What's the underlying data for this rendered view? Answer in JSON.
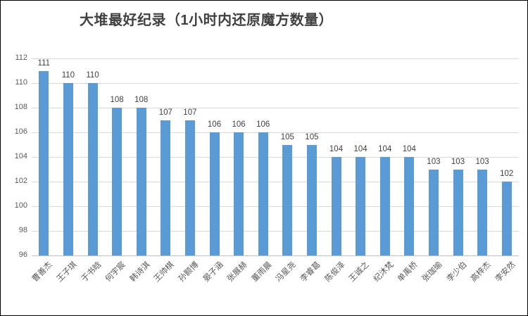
{
  "title": "大堆最好纪录（1小时内还原魔方数量）",
  "chart_data": {
    "type": "bar",
    "title": "大堆最好纪录（1小时内还原魔方数量）",
    "categories": [
      "曹善杰",
      "王子琪",
      "于书晗",
      "何宇宸",
      "韩诗淇",
      "王帅棋",
      "孙颢博",
      "晏子涵",
      "张展赫",
      "董雨晨",
      "冯星尧",
      "李睿葛",
      "陈俊泽",
      "王诚之",
      "纪沐梵",
      "单禹桥",
      "张珈瑜",
      "李少伯",
      "高梓杰",
      "李安然"
    ],
    "values": [
      111,
      110,
      110,
      108,
      108,
      107,
      107,
      106,
      106,
      106,
      105,
      105,
      104,
      104,
      104,
      104,
      103,
      103,
      103,
      102
    ],
    "xlabel": "",
    "ylabel": "",
    "ylim": [
      96,
      112
    ],
    "yticks": [
      96,
      98,
      100,
      102,
      104,
      106,
      108,
      110,
      112
    ],
    "grid": true,
    "legend": "none",
    "bar_color": "#5b9bd5",
    "gridline_color": "#d9d9d9",
    "axis_line_color": "#bfbfbf",
    "tick_label_color": "#595959",
    "value_label_color": "#404040",
    "title_color": "#404040"
  }
}
